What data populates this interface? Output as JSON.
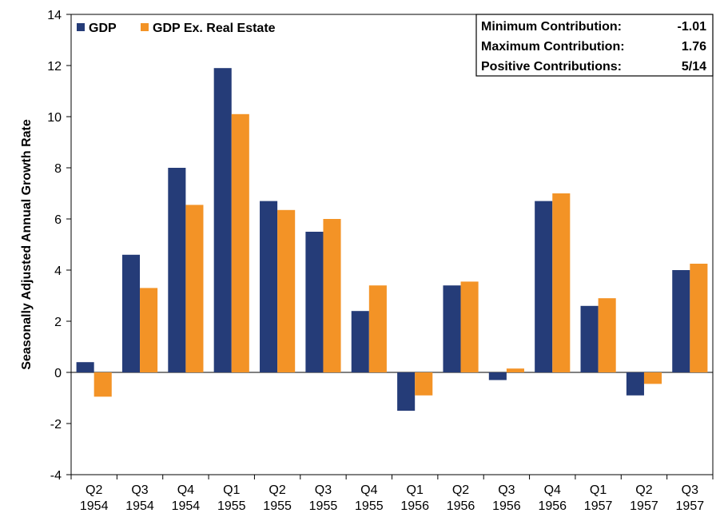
{
  "chart_data": {
    "type": "bar",
    "title": "",
    "xlabel": "",
    "ylabel": "Seasonally Adjusted Annual Growth Rate",
    "ylim": [
      -4,
      14
    ],
    "yticks": [
      -4,
      -2,
      0,
      2,
      4,
      6,
      8,
      10,
      12,
      14
    ],
    "grid": false,
    "legend_placement": "top-left",
    "categories": [
      [
        "Q2",
        "1954"
      ],
      [
        "Q3",
        "1954"
      ],
      [
        "Q4",
        "1954"
      ],
      [
        "Q1",
        "1955"
      ],
      [
        "Q2",
        "1955"
      ],
      [
        "Q3",
        "1955"
      ],
      [
        "Q4",
        "1955"
      ],
      [
        "Q1",
        "1956"
      ],
      [
        "Q2",
        "1956"
      ],
      [
        "Q3",
        "1956"
      ],
      [
        "Q4",
        "1956"
      ],
      [
        "Q1",
        "1957"
      ],
      [
        "Q2",
        "1957"
      ],
      [
        "Q3",
        "1957"
      ]
    ],
    "series": [
      {
        "name": "GDP",
        "color": "#253C78",
        "values": [
          0.4,
          4.6,
          8.0,
          11.9,
          6.7,
          5.5,
          2.4,
          -1.5,
          3.4,
          -0.3,
          6.7,
          2.6,
          -0.9,
          4.0
        ]
      },
      {
        "name": "GDP Ex. Real Estate",
        "color": "#F39326",
        "values": [
          -0.95,
          3.3,
          6.55,
          10.1,
          6.35,
          6.0,
          3.4,
          -0.9,
          3.55,
          0.15,
          7.0,
          2.9,
          -0.45,
          4.25
        ]
      }
    ],
    "stats": [
      {
        "label": "Minimum Contribution:",
        "value": "-1.01"
      },
      {
        "label": "Maximum Contribution:",
        "value": "1.76"
      },
      {
        "label": "Positive Contributions:",
        "value": "5/14"
      }
    ]
  }
}
